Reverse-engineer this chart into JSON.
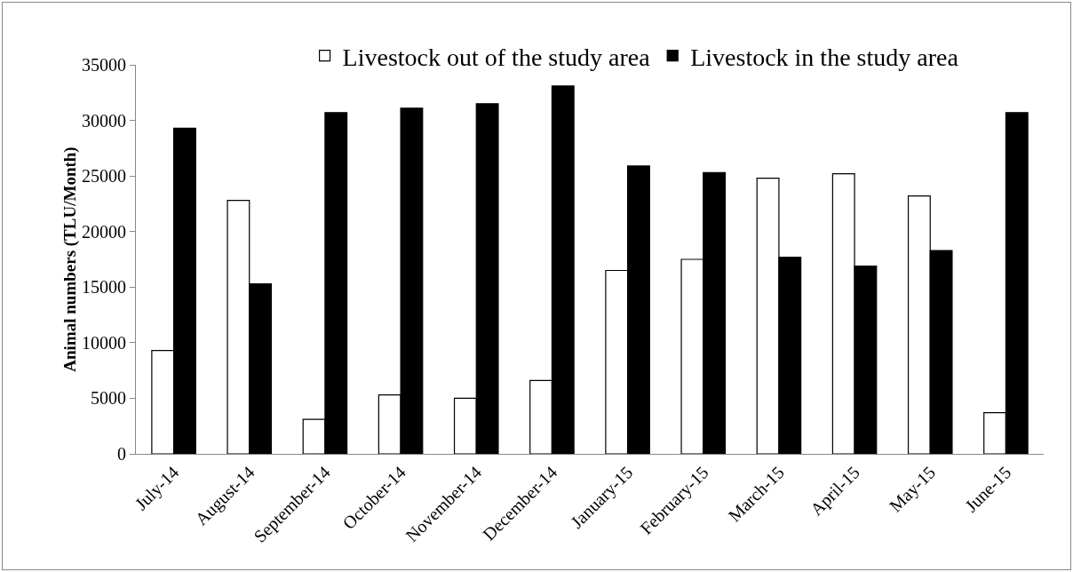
{
  "chart_data": {
    "type": "bar",
    "ylabel": "Animal numbers (TLU/Month)",
    "categories": [
      "July-14",
      "August-14",
      "September-14",
      "October-14",
      "November-14",
      "December-14",
      "January-15",
      "February-15",
      "March-15",
      "April-15",
      "May-15",
      "June-15"
    ],
    "series": [
      {
        "name": "Livestock out of the study area",
        "color": "#ffffff",
        "values": [
          9300,
          22800,
          3100,
          5300,
          5000,
          6600,
          16500,
          17500,
          24800,
          25200,
          23200,
          3700
        ]
      },
      {
        "name": "Livestock in the study area",
        "color": "#000000",
        "values": [
          29300,
          15300,
          30700,
          31100,
          31500,
          33100,
          25900,
          25300,
          17700,
          16900,
          18300,
          30700
        ]
      }
    ],
    "ylim": [
      0,
      35000
    ],
    "yticks": [
      0,
      5000,
      10000,
      15000,
      20000,
      25000,
      30000,
      35000
    ],
    "grid": false,
    "legend": "top"
  }
}
